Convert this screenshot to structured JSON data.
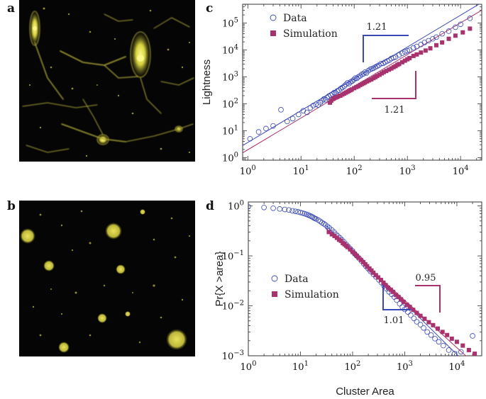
{
  "panels": {
    "a": {
      "letter": "a"
    },
    "b": {
      "letter": "b"
    },
    "c": {
      "letter": "c"
    },
    "d": {
      "letter": "d"
    }
  },
  "colors": {
    "data": "#3a49b8",
    "simulation": "#a8326e",
    "micro_background": "#050505",
    "micro_cluster": "#c8c23a",
    "micro_bright": "#f4f070"
  },
  "chart_data": [
    {
      "panel": "c",
      "type": "scatter",
      "x_scale": "log",
      "y_scale": "log",
      "xlim": [
        0.8,
        25000
      ],
      "ylim": [
        0.8,
        500000
      ],
      "xlabel": "",
      "ylabel": "Lightness",
      "x_ticks": [
        {
          "v": 1,
          "base": "10",
          "exp": "0"
        },
        {
          "v": 10,
          "base": "10",
          "exp": "1"
        },
        {
          "v": 100,
          "base": "10",
          "exp": "2"
        },
        {
          "v": 1000,
          "base": "10",
          "exp": "3"
        },
        {
          "v": 10000,
          "base": "10",
          "exp": "4"
        }
      ],
      "y_ticks": [
        {
          "v": 1,
          "base": "10",
          "exp": "0"
        },
        {
          "v": 10,
          "base": "10",
          "exp": "1"
        },
        {
          "v": 100,
          "base": "10",
          "exp": "2"
        },
        {
          "v": 1000,
          "base": "10",
          "exp": "3"
        },
        {
          "v": 10000,
          "base": "10",
          "exp": "4"
        },
        {
          "v": 100000,
          "base": "10",
          "exp": "5"
        }
      ],
      "legend": {
        "placement": "top-left",
        "entries": [
          "Data",
          "Simulation"
        ]
      },
      "series": [
        {
          "name": "Data",
          "marker": "open-circle",
          "x": [
            1.1,
            1.6,
            2.2,
            3.0,
            4.2,
            5.5,
            7,
            9,
            11,
            13,
            15,
            17,
            19,
            21,
            23,
            25,
            27,
            29,
            31,
            33,
            36,
            39,
            42,
            45,
            48,
            52,
            56,
            60,
            65,
            70,
            75,
            80,
            86,
            92,
            98,
            105,
            112,
            120,
            130,
            140,
            150,
            160,
            170,
            185,
            200,
            215,
            230,
            250,
            270,
            290,
            320,
            350,
            380,
            420,
            460,
            500,
            550,
            600,
            700,
            800,
            900,
            1000,
            1100,
            1300,
            1500,
            1800,
            2100,
            2500,
            3000,
            3500,
            4500,
            6000,
            8000,
            10000,
            15000
          ],
          "y": [
            5,
            9,
            12,
            15,
            60,
            22,
            28,
            40,
            55,
            48,
            70,
            85,
            95,
            90,
            110,
            130,
            150,
            140,
            170,
            190,
            210,
            230,
            260,
            250,
            300,
            320,
            370,
            400,
            450,
            520,
            600,
            560,
            650,
            700,
            780,
            900,
            880,
            1000,
            1100,
            1250,
            1300,
            1500,
            1400,
            1700,
            1900,
            2000,
            2100,
            2300,
            2500,
            2700,
            3100,
            3200,
            3500,
            3900,
            4200,
            4800,
            5200,
            5500,
            6500,
            7500,
            8500,
            9300,
            10000,
            12000,
            13500,
            16000,
            19000,
            22000,
            26000,
            30000,
            40000,
            50000,
            70000,
            90000,
            150000
          ]
        },
        {
          "name": "Simulation",
          "marker": "filled-square",
          "x": [
            35,
            37,
            40,
            42,
            45,
            48,
            50,
            55,
            60,
            65,
            70,
            75,
            80,
            85,
            90,
            100,
            110,
            120,
            130,
            140,
            150,
            160,
            175,
            190,
            210,
            230,
            250,
            270,
            300,
            330,
            360,
            400,
            450,
            500,
            550,
            600,
            650,
            700,
            800,
            900,
            1000,
            1100,
            1300,
            1500,
            1800,
            2200,
            2700,
            3500,
            4500,
            6000,
            8000,
            11000,
            15000
          ],
          "y": [
            110,
            130,
            150,
            160,
            170,
            180,
            190,
            200,
            220,
            240,
            260,
            280,
            300,
            320,
            340,
            380,
            420,
            450,
            500,
            540,
            580,
            620,
            680,
            740,
            800,
            900,
            980,
            1080,
            1200,
            1350,
            1500,
            1650,
            1850,
            2050,
            2300,
            2500,
            2800,
            3000,
            3500,
            4000,
            4500,
            5000,
            6000,
            6800,
            8000,
            9500,
            11500,
            15000,
            19000,
            26000,
            34000,
            45000,
            62000
          ]
        }
      ],
      "fits": [
        {
          "series": "Data",
          "slope": 1.21,
          "label": "1.21",
          "x": [
            0.8,
            25000
          ],
          "y": [
            2.8,
            580000
          ]
        },
        {
          "series": "Simulation",
          "slope": 1.21,
          "label": "1.21",
          "x": [
            0.8,
            25000
          ],
          "y": [
            1.5,
            300000
          ]
        }
      ]
    },
    {
      "panel": "d",
      "type": "scatter",
      "x_scale": "log",
      "y_scale": "log",
      "xlim": [
        1,
        30000
      ],
      "ylim": [
        0.001,
        1.2
      ],
      "xlabel": "Cluster Area",
      "ylabel": "Pr{X >area}",
      "x_ticks": [
        {
          "v": 1,
          "base": "10",
          "exp": "0"
        },
        {
          "v": 10,
          "base": "10",
          "exp": "1"
        },
        {
          "v": 100,
          "base": "10",
          "exp": "2"
        },
        {
          "v": 1000,
          "base": "10",
          "exp": "3"
        },
        {
          "v": 10000,
          "base": "10",
          "exp": "4"
        }
      ],
      "y_ticks": [
        {
          "v": 1,
          "base": "10",
          "exp": "0"
        },
        {
          "v": 0.1,
          "base": "10",
          "exp": "−1"
        },
        {
          "v": 0.01,
          "base": "10",
          "exp": "−2"
        },
        {
          "v": 0.001,
          "base": "10",
          "exp": "−3"
        }
      ],
      "legend": {
        "placement": "center-right",
        "entries": [
          "Data",
          "Simulation"
        ]
      },
      "series": [
        {
          "name": "Data",
          "marker": "open-circle",
          "x": [
            1,
            2,
            3,
            4,
            5,
            6,
            7,
            8,
            9,
            10,
            11,
            12,
            13,
            14,
            15,
            16,
            17,
            18,
            19,
            20,
            22,
            24,
            26,
            28,
            30,
            33,
            36,
            40,
            44,
            48,
            52,
            57,
            62,
            68,
            75,
            82,
            90,
            100,
            110,
            120,
            135,
            150,
            165,
            180,
            200,
            220,
            250,
            280,
            320,
            360,
            400,
            450,
            500,
            560,
            630,
            700,
            800,
            900,
            1000,
            1150,
            1300,
            1500,
            1700,
            2000,
            2300,
            2700,
            3200,
            3800,
            4500,
            5500,
            7000,
            9000,
            12000,
            20000
          ],
          "y": [
            0.97,
            0.93,
            0.9,
            0.87,
            0.85,
            0.83,
            0.8,
            0.78,
            0.76,
            0.74,
            0.72,
            0.7,
            0.68,
            0.66,
            0.64,
            0.62,
            0.6,
            0.58,
            0.56,
            0.55,
            0.52,
            0.49,
            0.46,
            0.44,
            0.42,
            0.39,
            0.36,
            0.33,
            0.3,
            0.27,
            0.25,
            0.23,
            0.21,
            0.19,
            0.17,
            0.155,
            0.14,
            0.125,
            0.11,
            0.1,
            0.088,
            0.078,
            0.069,
            0.062,
            0.055,
            0.049,
            0.043,
            0.038,
            0.033,
            0.029,
            0.025,
            0.022,
            0.019,
            0.017,
            0.015,
            0.013,
            0.011,
            0.0095,
            0.0085,
            0.0075,
            0.0065,
            0.0056,
            0.0048,
            0.0042,
            0.0036,
            0.003,
            0.0026,
            0.0022,
            0.0019,
            0.0016,
            0.0013,
            0.0011,
            0.0012,
            0.0025
          ]
        },
        {
          "name": "Simulation",
          "marker": "filled-square",
          "x": [
            35,
            40,
            45,
            50,
            55,
            60,
            65,
            70,
            75,
            80,
            90,
            100,
            110,
            120,
            130,
            145,
            160,
            175,
            190,
            210,
            230,
            250,
            280,
            310,
            350,
            390,
            430,
            480,
            540,
            600,
            680,
            760,
            850,
            950,
            1100,
            1250,
            1450,
            1700,
            2000,
            2400,
            2900,
            3500,
            4300,
            5300,
            6500,
            8000,
            10000,
            13000,
            17000,
            22000
          ],
          "y": [
            0.3,
            0.27,
            0.25,
            0.23,
            0.21,
            0.2,
            0.18,
            0.17,
            0.16,
            0.15,
            0.135,
            0.12,
            0.11,
            0.1,
            0.092,
            0.083,
            0.075,
            0.068,
            0.062,
            0.056,
            0.051,
            0.046,
            0.041,
            0.037,
            0.033,
            0.029,
            0.026,
            0.023,
            0.021,
            0.019,
            0.0165,
            0.015,
            0.0135,
            0.012,
            0.0105,
            0.0095,
            0.0083,
            0.0072,
            0.0063,
            0.0055,
            0.0047,
            0.0041,
            0.0035,
            0.003,
            0.0026,
            0.0022,
            0.0019,
            0.0016,
            0.0013,
            0.0011
          ]
        }
      ],
      "fits": [
        {
          "series": "Data",
          "slope": -1.01,
          "label": "1.01",
          "x": [
            30,
            20000
          ],
          "y": [
            0.42,
            0.00052
          ]
        },
        {
          "series": "Simulation",
          "slope": -0.95,
          "label": "0.95",
          "x": [
            30,
            25000
          ],
          "y": [
            0.36,
            0.00061
          ]
        }
      ]
    }
  ]
}
